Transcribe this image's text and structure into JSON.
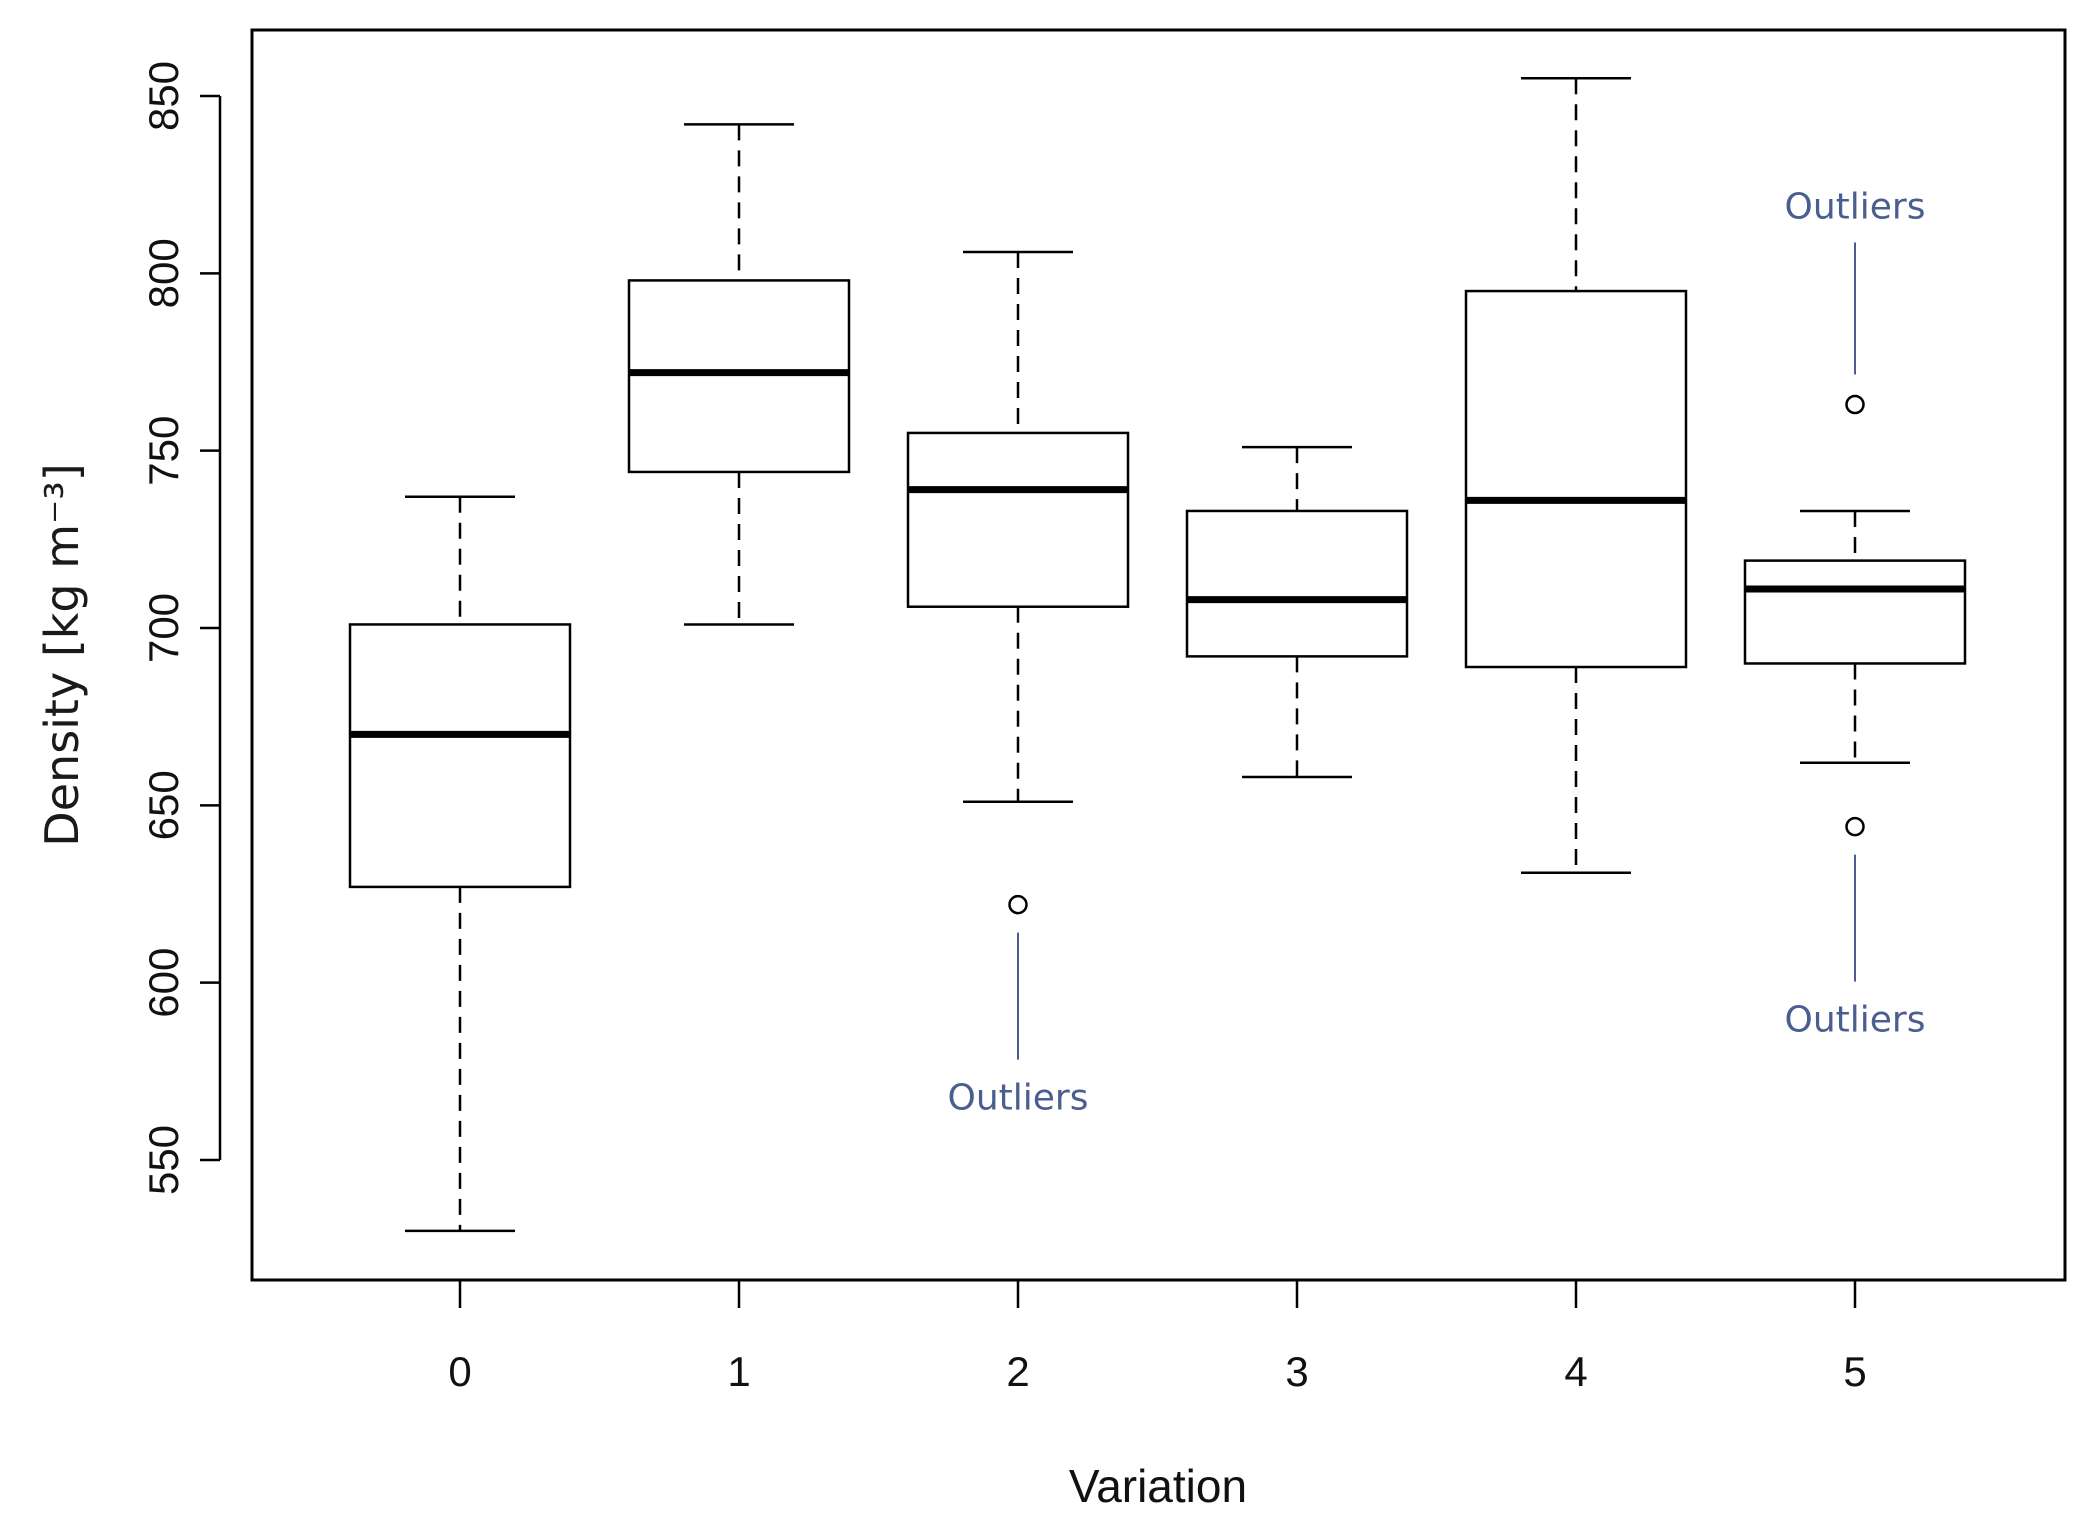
{
  "chart_data": {
    "type": "boxplot",
    "xlabel": "Variation",
    "ylabel": "Density [kg m⁻³]",
    "ylim": [
      518,
      870
    ],
    "yticks": [
      550,
      600,
      650,
      700,
      750,
      800,
      850
    ],
    "categories": [
      "0",
      "1",
      "2",
      "3",
      "4",
      "5"
    ],
    "boxes": [
      {
        "category": "0",
        "whisker_low": 530,
        "q1": 627,
        "median": 670,
        "q3": 701,
        "whisker_high": 737,
        "outliers": []
      },
      {
        "category": "1",
        "whisker_low": 701,
        "q1": 744,
        "median": 772,
        "q3": 798,
        "whisker_high": 842,
        "outliers": []
      },
      {
        "category": "2",
        "whisker_low": 651,
        "q1": 706,
        "median": 739,
        "q3": 755,
        "whisker_high": 806,
        "outliers": [
          622
        ]
      },
      {
        "category": "3",
        "whisker_low": 658,
        "q1": 692,
        "median": 708,
        "q3": 733,
        "whisker_high": 751,
        "outliers": []
      },
      {
        "category": "4",
        "whisker_low": 631,
        "q1": 689,
        "median": 736,
        "q3": 795,
        "whisker_high": 855,
        "outliers": []
      },
      {
        "category": "5",
        "whisker_low": 662,
        "q1": 690,
        "median": 711,
        "q3": 719,
        "whisker_high": 733,
        "outliers": [
          763,
          644
        ]
      }
    ],
    "annotations": [
      {
        "text": "Outliers",
        "category": "2",
        "target_value": 622,
        "position": "below"
      },
      {
        "text": "Outliers",
        "category": "5",
        "target_value": 763,
        "position": "above"
      },
      {
        "text": "Outliers",
        "category": "5",
        "target_value": 644,
        "position": "below"
      }
    ],
    "colors": {
      "box": "#000000",
      "annotation": "#4a5e8f"
    }
  }
}
